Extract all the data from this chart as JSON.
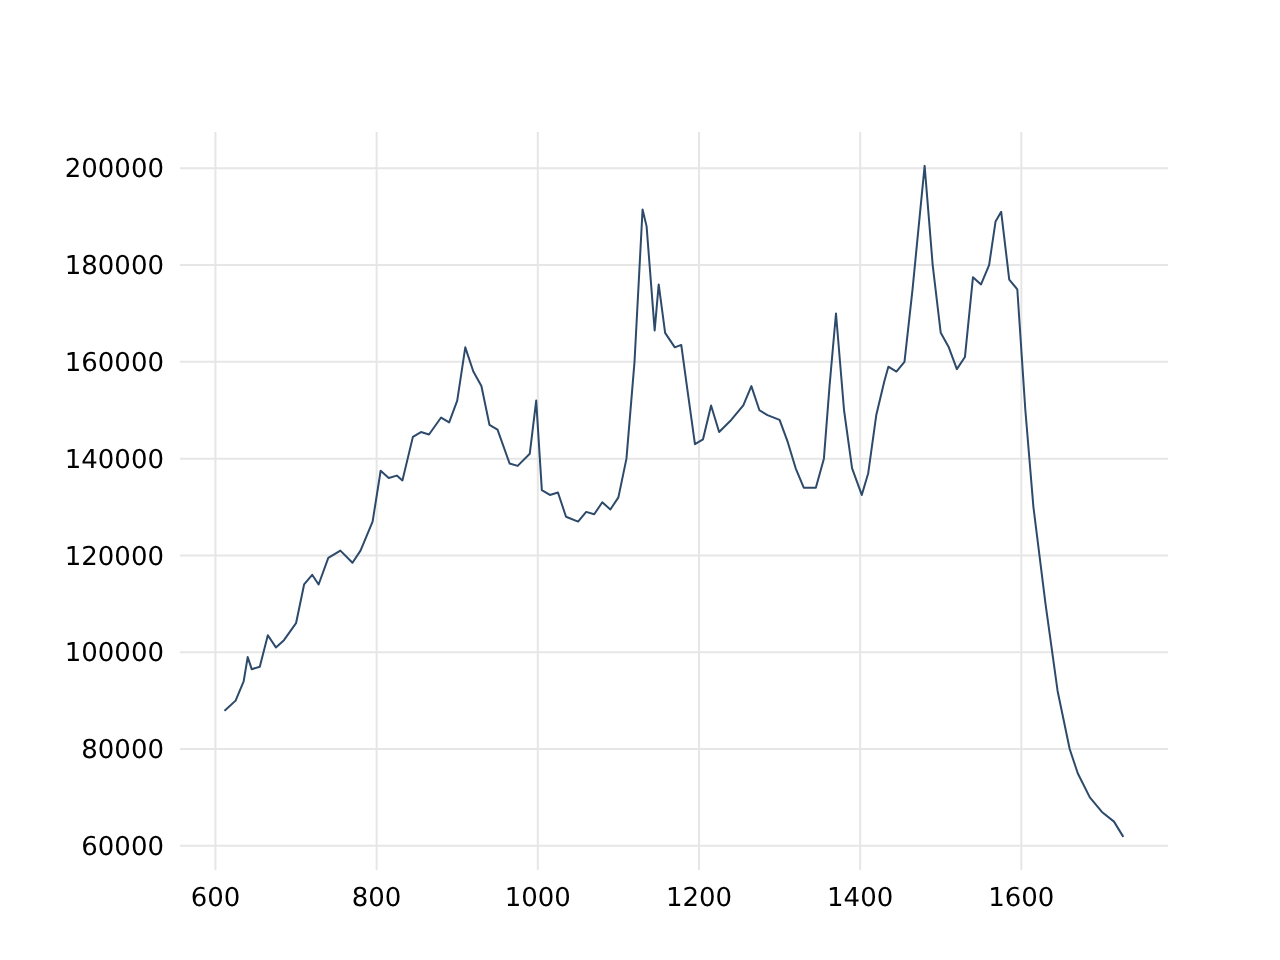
{
  "chart_data": {
    "type": "line",
    "xlim": [
      556,
      1782
    ],
    "ylim": [
      55000,
      207500
    ],
    "xticks": [
      600,
      800,
      1000,
      1200,
      1400,
      1600
    ],
    "yticks": [
      60000,
      80000,
      100000,
      120000,
      140000,
      160000,
      180000,
      200000
    ],
    "grid": true,
    "series": [
      {
        "color": "#2d4a6b",
        "x": [
          612,
          625,
          635,
          640,
          645,
          655,
          665,
          675,
          685,
          700,
          710,
          720,
          728,
          740,
          755,
          770,
          780,
          795,
          805,
          815,
          825,
          832,
          845,
          855,
          865,
          880,
          890,
          900,
          910,
          920,
          930,
          940,
          950,
          965,
          975,
          990,
          998,
          1005,
          1015,
          1025,
          1035,
          1050,
          1060,
          1070,
          1080,
          1090,
          1100,
          1110,
          1120,
          1130,
          1135,
          1145,
          1150,
          1158,
          1170,
          1178,
          1185,
          1195,
          1205,
          1215,
          1225,
          1240,
          1255,
          1265,
          1275,
          1285,
          1300,
          1310,
          1320,
          1330,
          1345,
          1355,
          1362,
          1370,
          1380,
          1390,
          1402,
          1410,
          1420,
          1430,
          1435,
          1445,
          1455,
          1465,
          1480,
          1490,
          1500,
          1510,
          1520,
          1530,
          1540,
          1550,
          1560,
          1568,
          1575,
          1585,
          1595,
          1605,
          1615,
          1630,
          1645,
          1660,
          1670,
          1685,
          1700,
          1715,
          1726
        ],
        "values": [
          88000,
          90000,
          94000,
          99000,
          96500,
          97000,
          103500,
          101000,
          102500,
          106000,
          114000,
          116000,
          114000,
          119500,
          121000,
          118500,
          121000,
          127000,
          137500,
          136000,
          136500,
          135500,
          144500,
          145500,
          145000,
          148500,
          147500,
          152000,
          163000,
          158000,
          155000,
          147000,
          146000,
          139000,
          138500,
          141000,
          152000,
          133500,
          132500,
          133000,
          128000,
          127000,
          129000,
          128500,
          131000,
          129500,
          132000,
          140000,
          160000,
          191500,
          188000,
          166500,
          176000,
          166000,
          163000,
          163500,
          155000,
          143000,
          144000,
          151000,
          145500,
          148000,
          151000,
          155000,
          150000,
          149000,
          148000,
          143500,
          138000,
          134000,
          134000,
          140000,
          155000,
          170000,
          150000,
          138000,
          132500,
          137000,
          149000,
          156000,
          159000,
          158000,
          160000,
          175000,
          200500,
          180000,
          166000,
          163000,
          158500,
          161000,
          177500,
          176000,
          180000,
          189000,
          191000,
          177000,
          175000,
          150000,
          130000,
          110000,
          92000,
          80000,
          75000,
          70000,
          67000,
          65000,
          62000
        ]
      }
    ]
  }
}
